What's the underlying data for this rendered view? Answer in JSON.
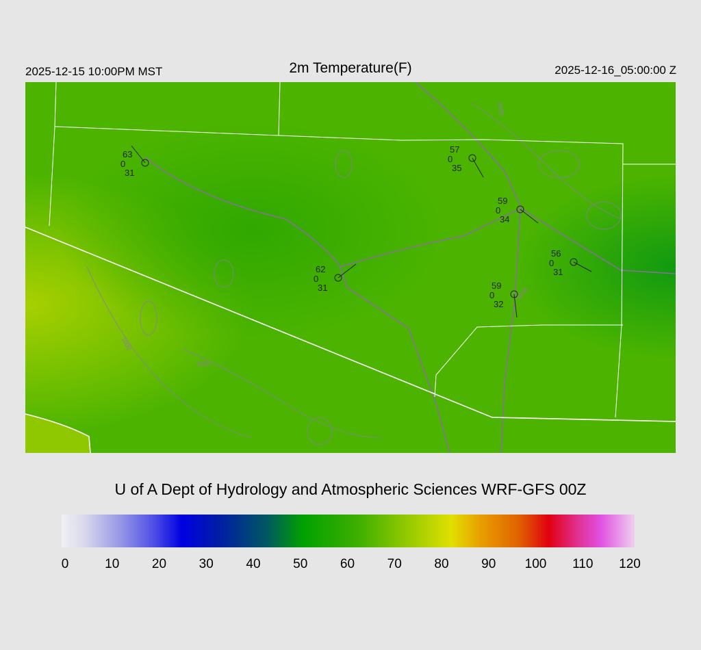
{
  "header": {
    "local_time": "2025-12-15 10:00PM MST",
    "title": "2m Temperature(F)",
    "valid_time": "2025-12-16_05:00:00 Z"
  },
  "credit": "U of A Dept of Hydrology and Atmospheric Sciences WRF-GFS 00Z",
  "colorbar": {
    "units": "F",
    "ticks": [
      "0",
      "10",
      "20",
      "30",
      "40",
      "50",
      "60",
      "70",
      "80",
      "90",
      "100",
      "110",
      "120"
    ]
  },
  "stations": [
    {
      "temp": "63",
      "dew": "31",
      "cloud": "0"
    },
    {
      "temp": "57",
      "dew": "35",
      "cloud": "0"
    },
    {
      "temp": "59",
      "dew": "34",
      "cloud": "0"
    },
    {
      "temp": "56",
      "dew": "31",
      "cloud": "0"
    },
    {
      "temp": "62",
      "dew": "31",
      "cloud": "0"
    },
    {
      "temp": "59",
      "dew": "32",
      "cloud": "0"
    }
  ],
  "contour_labels": [
    "4000",
    "5000",
    "1000",
    "3000"
  ],
  "colors": {
    "background": "#e6e6e6",
    "field": "#44b000",
    "borders": "#ffffff",
    "contours": "#8a7fa0",
    "roads": "#8a6fa0"
  }
}
